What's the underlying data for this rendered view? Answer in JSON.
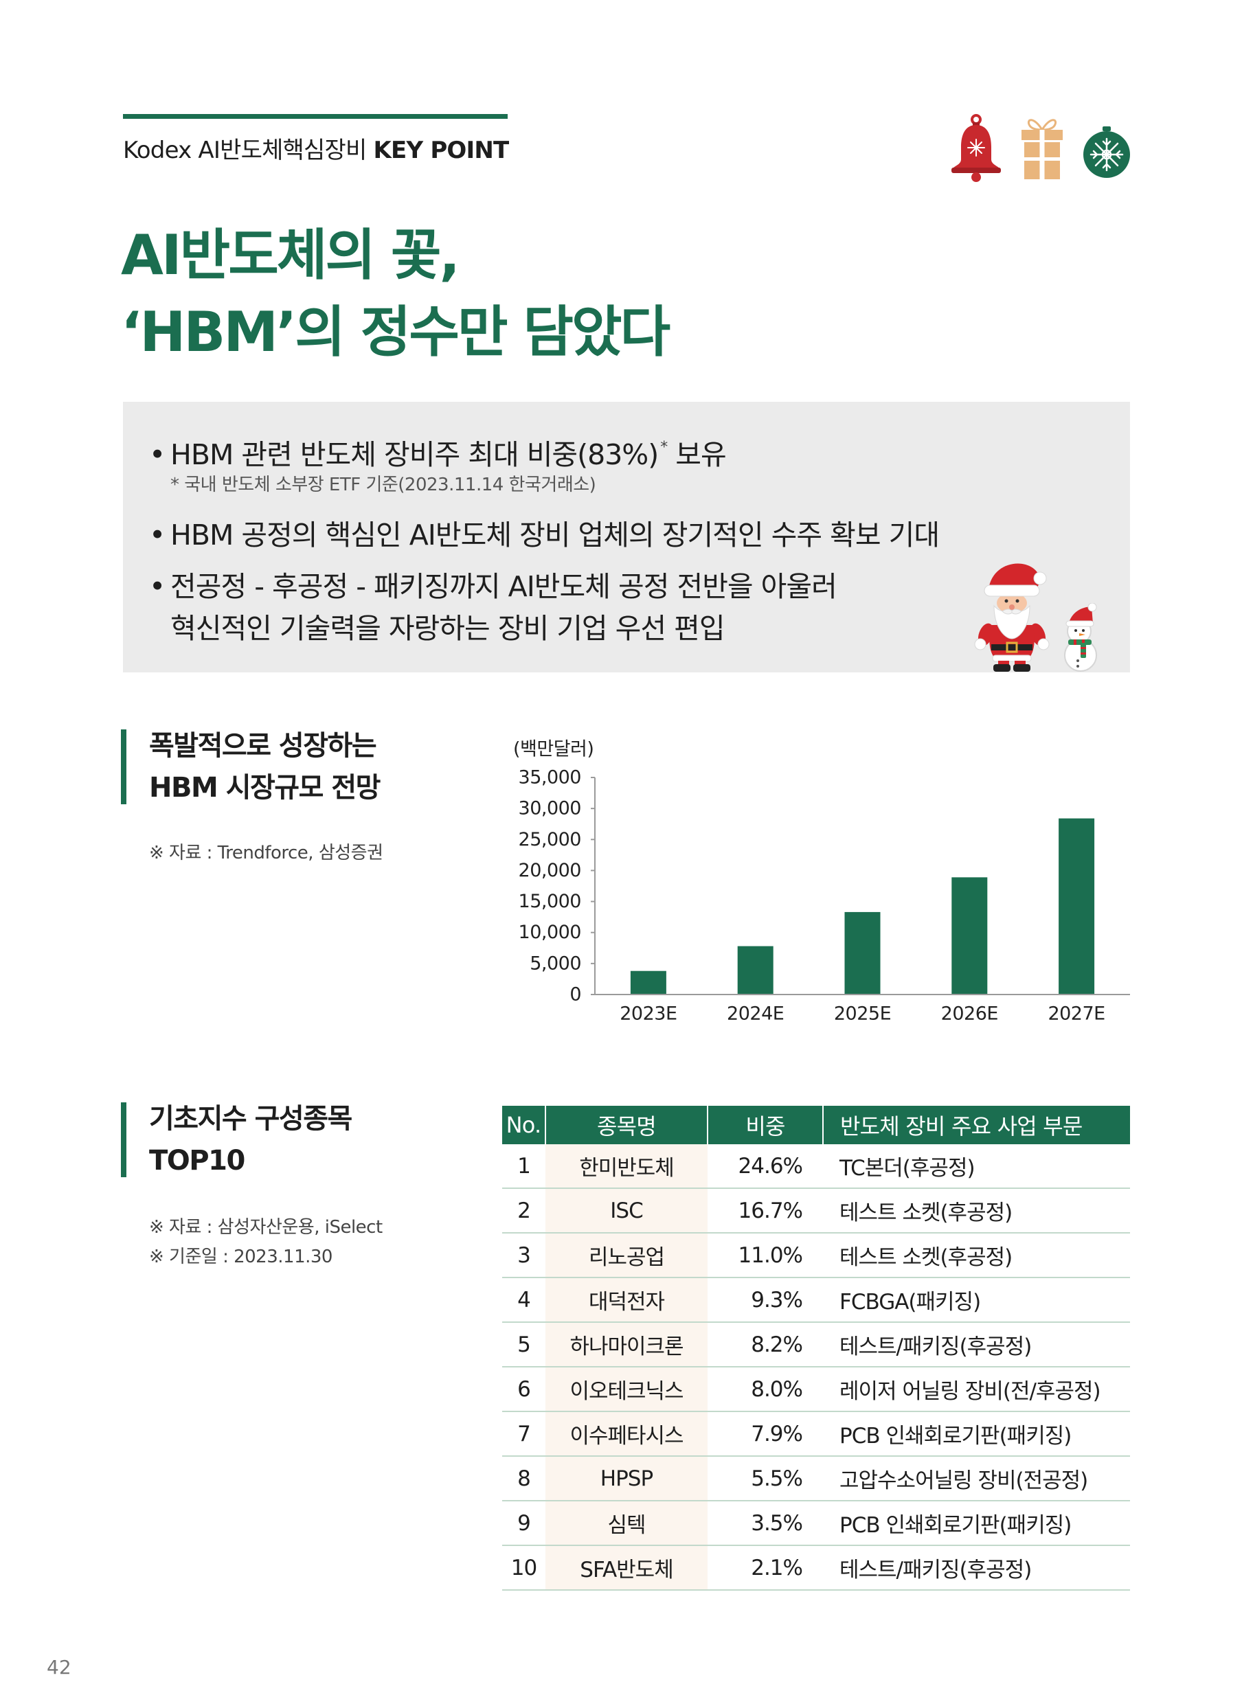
{
  "header": {
    "product_name": "Kodex AI반도체핵심장비",
    "key_point": "KEY POINT"
  },
  "decorations": {
    "top_icons": [
      "bell-icon",
      "gift-box-icon",
      "ornament-icon"
    ],
    "illustrations": [
      "santa-illustration",
      "snowman-illustration"
    ]
  },
  "title": {
    "line1": "AI반도체의 꽃,",
    "line2": "‘HBM’의 정수만 담았다"
  },
  "highlights": {
    "bullet_mark": "•",
    "item1_text": "HBM 관련 반도체 장비주 최대 비중(83%)",
    "item1_mark": "*",
    "item1_tail": "보유",
    "item1_footnote": "* 국내 반도체 소부장 ETF 기준(2023.11.14 한국거래소)",
    "item2_text": "HBM 공정의 핵심인 AI반도체 장비 업체의 장기적인 수주 확보 기대",
    "item3_line1": "전공정 - 후공정 - 패키징까지 AI반도체 공정 전반을 아울러",
    "item3_line2": "혁신적인 기술력을 자랑하는 장비 기업 우선 편입"
  },
  "market_section": {
    "heading_line1": "폭발적으로 성장하는",
    "heading_line2": "HBM 시장규모 전망",
    "source": "※ 자료 : Trendforce, 삼성증권"
  },
  "chart_data": {
    "type": "bar",
    "ylabel": "(백만달러)",
    "categories": [
      "2023E",
      "2024E",
      "2025E",
      "2026E",
      "2027E"
    ],
    "values": [
      3800,
      7800,
      13300,
      18900,
      28400
    ],
    "ylim": [
      0,
      35000
    ],
    "ytick_labels": [
      "0",
      "5,000",
      "10,000",
      "15,000",
      "20,000",
      "25,000",
      "30,000",
      "35,000"
    ],
    "grid": false,
    "bar_color": "#1b6e50"
  },
  "holdings_section": {
    "heading_line1": "기초지수 구성종목",
    "heading_line2": "TOP10",
    "source": "※ 자료 : 삼성자산운용, iSelect",
    "base_date": "※ 기준일 : 2023.11.30",
    "columns": [
      "No.",
      "종목명",
      "비중",
      "반도체 장비 주요 사업 부문"
    ],
    "rows": [
      {
        "no": "1",
        "name": "한미반도체",
        "weight": "24.6%",
        "sector": "TC본더(후공정)"
      },
      {
        "no": "2",
        "name": "ISC",
        "weight": "16.7%",
        "sector": "테스트 소켓(후공정)"
      },
      {
        "no": "3",
        "name": "리노공업",
        "weight": "11.0%",
        "sector": "테스트 소켓(후공정)"
      },
      {
        "no": "4",
        "name": "대덕전자",
        "weight": "9.3%",
        "sector": "FCBGA(패키징)"
      },
      {
        "no": "5",
        "name": "하나마이크론",
        "weight": "8.2%",
        "sector": "테스트/패키징(후공정)"
      },
      {
        "no": "6",
        "name": "이오테크닉스",
        "weight": "8.0%",
        "sector": "레이저 어닐링 장비(전/후공정)"
      },
      {
        "no": "7",
        "name": "이수페타시스",
        "weight": "7.9%",
        "sector": "PCB 인쇄회로기판(패키징)"
      },
      {
        "no": "8",
        "name": "HPSP",
        "weight": "5.5%",
        "sector": "고압수소어닐링 장비(전공정)"
      },
      {
        "no": "9",
        "name": "심텍",
        "weight": "3.5%",
        "sector": "PCB 인쇄회로기판(패키징)"
      },
      {
        "no": "10",
        "name": "SFA반도체",
        "weight": "2.1%",
        "sector": "테스트/패키징(후공정)"
      }
    ]
  },
  "page_number": "42",
  "colors": {
    "brand_green": "#1b6e50",
    "panel_grey": "#ebebeb",
    "row_rule": "#c2d9cb",
    "name_column_tint": "#fcf5ee",
    "bell_red": "#c8292e",
    "gift_tan": "#e9b57c"
  }
}
